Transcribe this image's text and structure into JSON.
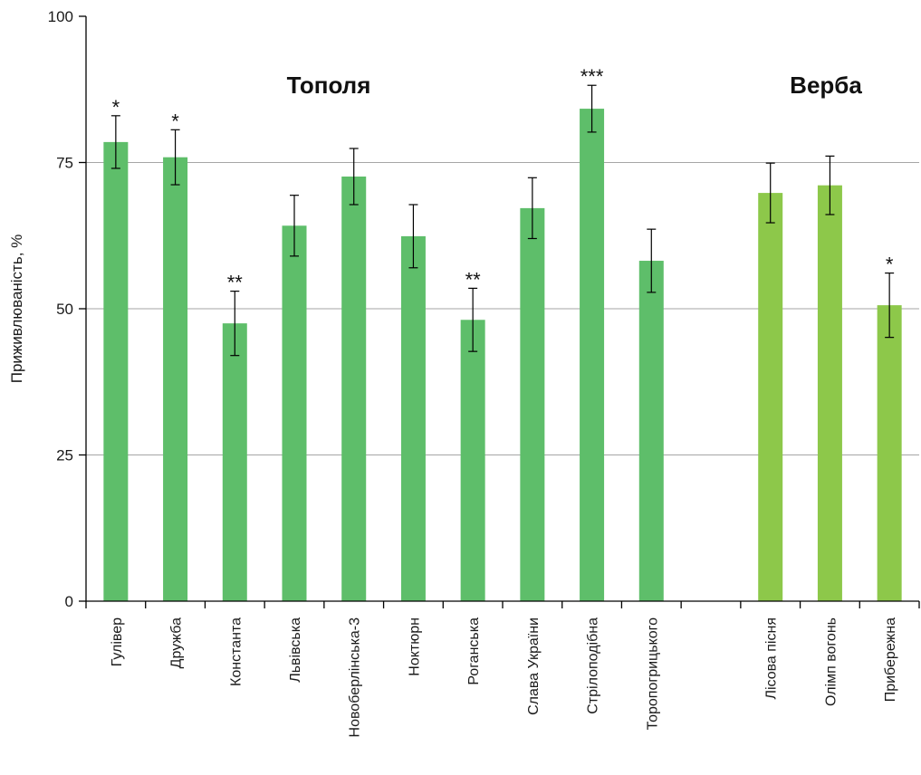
{
  "chart_data": {
    "type": "bar",
    "ylabel": "Приживлюваність, %",
    "xlabel": "",
    "ylim": [
      0,
      100
    ],
    "yticks": [
      0,
      25,
      50,
      75,
      100
    ],
    "grid": true,
    "groups": [
      {
        "label": "Тополя",
        "color": "#5ebe6a"
      },
      {
        "label": "Верба",
        "color": "#8dc84a"
      }
    ],
    "categories": [
      "Гулівер",
      "Дружба",
      "Константа",
      "Львівська",
      "Новоберлінська-3",
      "Ноктюрн",
      "Роганська",
      "Слава України",
      "Стрілоподібна",
      "Торопогрицького",
      "",
      "Лісова пісня",
      "Олімп вогонь",
      "Прибережна"
    ],
    "values": [
      78.5,
      75.9,
      47.5,
      64.2,
      72.6,
      62.4,
      48.1,
      67.2,
      84.2,
      58.2,
      null,
      69.8,
      71.1,
      50.6
    ],
    "errors": [
      4.5,
      4.7,
      5.5,
      5.2,
      4.8,
      5.4,
      5.4,
      5.2,
      4.0,
      5.4,
      null,
      5.1,
      5.0,
      5.5
    ],
    "significance": [
      "*",
      "*",
      "**",
      "",
      "",
      "",
      "**",
      "",
      "***",
      "",
      "",
      "",
      "",
      "*"
    ],
    "bar_group": [
      0,
      0,
      0,
      0,
      0,
      0,
      0,
      0,
      0,
      0,
      null,
      1,
      1,
      1
    ]
  }
}
